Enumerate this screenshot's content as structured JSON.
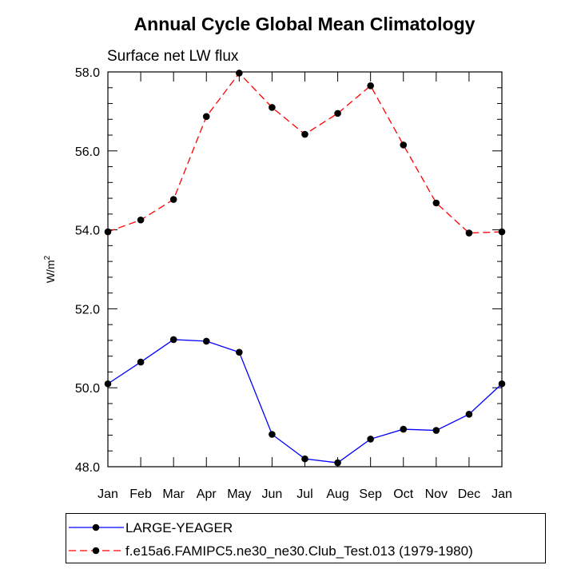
{
  "chart_data": {
    "type": "line",
    "title": "Annual Cycle Global Mean Climatology",
    "subtitle": "Surface net LW flux",
    "ylabel_base": "W/m",
    "ylabel_sup": "2",
    "ylim": [
      48.0,
      58.0
    ],
    "yticks": [
      "48.0",
      "50.0",
      "52.0",
      "54.0",
      "56.0",
      "58.0"
    ],
    "categories": [
      "Jan",
      "Feb",
      "Mar",
      "Apr",
      "May",
      "Jun",
      "Jul",
      "Aug",
      "Sep",
      "Oct",
      "Nov",
      "Dec",
      "Jan"
    ],
    "series": [
      {
        "name": "LARGE-YEAGER",
        "color": "#0000ff",
        "line_style": "solid",
        "values": [
          50.1,
          50.65,
          51.22,
          51.18,
          50.9,
          48.82,
          48.2,
          48.1,
          48.7,
          48.95,
          48.92,
          49.33,
          50.1
        ]
      },
      {
        "name": "f.e15a6.FAMIPC5.ne30_ne30.Club_Test.013 (1979-1980)",
        "color": "#ff0000",
        "line_style": "dashed",
        "values": [
          53.95,
          54.25,
          54.77,
          56.87,
          57.97,
          57.1,
          56.42,
          56.95,
          57.65,
          56.15,
          54.68,
          53.92,
          53.95
        ]
      }
    ],
    "grid": false,
    "legend_position": "bottom"
  }
}
